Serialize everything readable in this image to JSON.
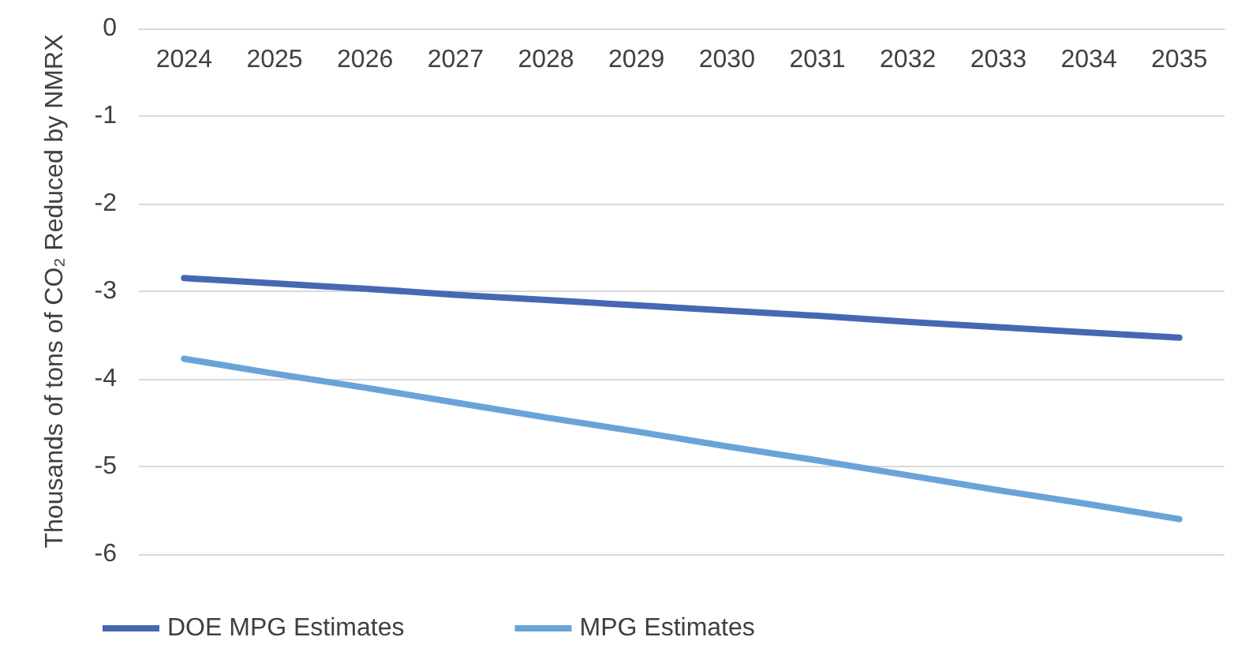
{
  "chart_data": {
    "type": "line",
    "ylabel": "Thousands of tons of CO₂ Reduced by NMRX",
    "categories": [
      "2024",
      "2025",
      "2026",
      "2027",
      "2028",
      "2029",
      "2030",
      "2031",
      "2032",
      "2033",
      "2034",
      "2035"
    ],
    "series": [
      {
        "name": "DOE MPG Estimates",
        "color": "#4668b4",
        "values": [
          -2.85,
          -2.91,
          -2.97,
          -3.04,
          -3.1,
          -3.16,
          -3.22,
          -3.28,
          -3.35,
          -3.41,
          -3.47,
          -3.53
        ]
      },
      {
        "name": "MPG Estimates",
        "color": "#6aa3d8",
        "values": [
          -3.77,
          -3.94,
          -4.1,
          -4.27,
          -4.44,
          -4.6,
          -4.77,
          -4.93,
          -5.1,
          -5.27,
          -5.43,
          -5.6
        ]
      }
    ],
    "ylim": [
      -6,
      0
    ],
    "yticks": [
      0,
      -1,
      -2,
      -3,
      -4,
      -5,
      -6
    ],
    "grid": "y",
    "legend": "bottom",
    "marker": "none",
    "line_style": "solid"
  }
}
